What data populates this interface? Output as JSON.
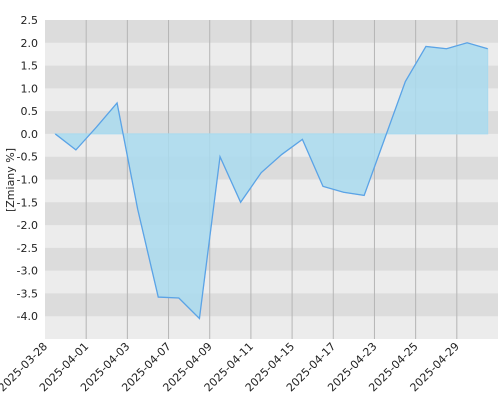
{
  "chart_data": {
    "type": "area",
    "y_label": "[Zmiany %]",
    "categories": [
      "2025-03-28",
      null,
      "2025-04-01",
      null,
      "2025-04-03",
      null,
      "2025-04-07",
      null,
      "2025-04-09",
      null,
      "2025-04-11",
      null,
      "2025-04-15",
      null,
      "2025-04-17",
      null,
      "2025-04-23",
      null,
      "2025-04-25",
      null,
      "2025-04-29",
      null
    ],
    "values": [
      0.0,
      -0.35,
      0.15,
      0.68,
      -1.65,
      -3.58,
      -3.6,
      -4.05,
      -0.5,
      -1.5,
      -0.85,
      -0.45,
      -0.12,
      -1.15,
      -1.28,
      -1.35,
      -0.1,
      1.15,
      1.92,
      1.87,
      2.0,
      1.87
    ],
    "color": "#5ba3e6",
    "fill": "#a9daef",
    "ylim": [
      -4.5,
      2.5
    ],
    "yticks": [
      {
        "value": -4,
        "label": "-4.0"
      },
      -3.5,
      {
        "value": -3,
        "label": "-3.0"
      },
      -2.5,
      {
        "value": -2,
        "label": "-2.0"
      },
      -1.5,
      {
        "value": -1,
        "label": "-1.0"
      },
      -0.5,
      {
        "value": 0,
        "label": "0.0"
      },
      0.5,
      {
        "value": 1,
        "label": "1.0"
      },
      1.5,
      {
        "value": 2,
        "label": "2.0"
      },
      2.5
    ],
    "grid": true
  }
}
